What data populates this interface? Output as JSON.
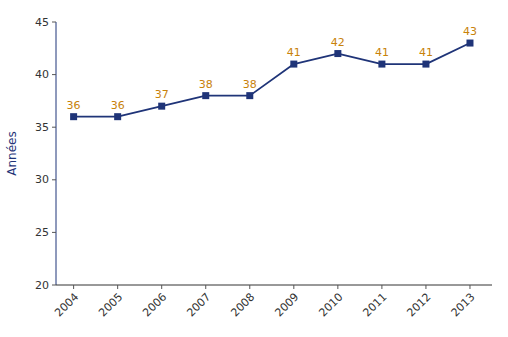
{
  "chart_data": {
    "type": "line",
    "x": [
      2004,
      2005,
      2006,
      2007,
      2008,
      2009,
      2010,
      2011,
      2012,
      2013
    ],
    "values": [
      36,
      36,
      37,
      38,
      38,
      41,
      42,
      41,
      41,
      43
    ],
    "color": "#1F3478",
    "marker": "square",
    "data_labels": true,
    "ylabel": "Années",
    "xlim": [
      2003.6,
      2013.5
    ],
    "xticks": [
      2004,
      2005,
      2006,
      2007,
      2008,
      2009,
      2010,
      2011,
      2012,
      2013
    ],
    "ylim": [
      20,
      45
    ],
    "yticks": [
      20,
      25,
      30,
      35,
      40,
      45
    ],
    "grid": false
  }
}
